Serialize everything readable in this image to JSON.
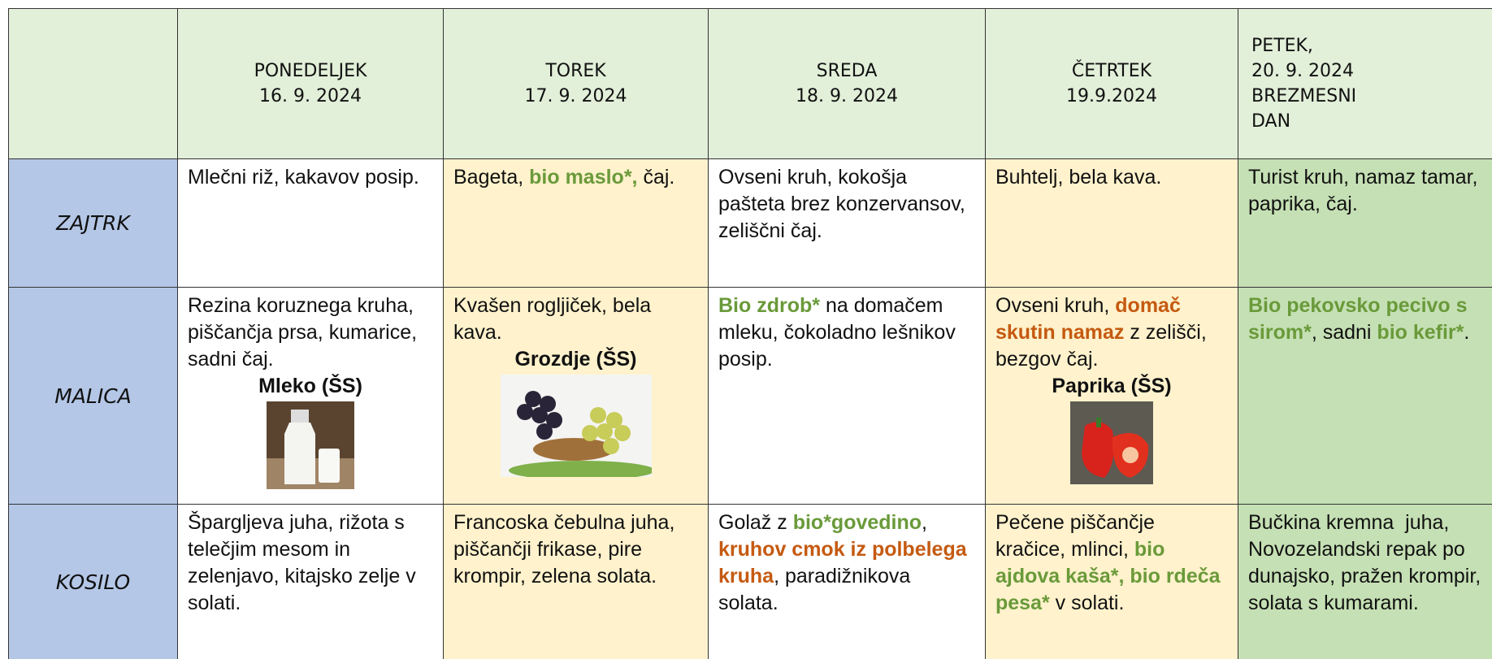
{
  "header": {
    "days": [
      {
        "lines": [
          "PONEDELJEK",
          "16. 9. 2024"
        ]
      },
      {
        "lines": [
          "TOREK",
          "17. 9. 2024"
        ]
      },
      {
        "lines": [
          "SREDA",
          "18. 9. 2024"
        ]
      },
      {
        "lines": [
          "ČETRTEK",
          "19.9.2024"
        ]
      },
      {
        "lines": [
          "PETEK,",
          "20. 9. 2024",
          "BREZMESNI",
          "DAN"
        ]
      }
    ]
  },
  "rows": [
    {
      "label": "ZAJTRK",
      "cells": [
        {
          "segments": [
            {
              "text": "Mlečni riž, kakavov posip.",
              "style": "plain"
            }
          ]
        },
        {
          "segments": [
            {
              "text": "Bageta, ",
              "style": "plain"
            },
            {
              "text": "bio maslo*,",
              "style": "green"
            },
            {
              "text": " čaj.",
              "style": "plain"
            }
          ]
        },
        {
          "segments": [
            {
              "text": "Ovseni kruh, kokošja pašteta brez konzervansov, zeliščni čaj.",
              "style": "plain"
            }
          ]
        },
        {
          "segments": [
            {
              "text": "Buhtelj, bela kava.",
              "style": "plain"
            }
          ]
        },
        {
          "segments": [
            {
              "text": "Turist kruh, namaz tamar, paprika, čaj.",
              "style": "plain"
            }
          ]
        }
      ]
    },
    {
      "label": "MALICA",
      "cells": [
        {
          "segments": [
            {
              "text": "Rezina koruznega kruha, piščančja prsa, kumarice, sadni čaj.",
              "style": "plain"
            }
          ],
          "snack": "Mleko (ŠS)"
        },
        {
          "segments": [
            {
              "text": "Kvašen rogljiček, bela kava.",
              "style": "plain"
            }
          ],
          "snack": "Grozdje (ŠS)"
        },
        {
          "segments": [
            {
              "text": "Bio zdrob*",
              "style": "green"
            },
            {
              "text": " na domačem mleku, čokoladno lešnikov posip.",
              "style": "plain"
            }
          ]
        },
        {
          "segments": [
            {
              "text": "Ovseni kruh, ",
              "style": "plain"
            },
            {
              "text": "domač skutin namaz",
              "style": "orange"
            },
            {
              "text": " z zelišči, bezgov čaj.",
              "style": "plain"
            }
          ],
          "snack": "Paprika (ŠS)"
        },
        {
          "segments": [
            {
              "text": "Bio pekovsko pecivo s sirom*",
              "style": "green"
            },
            {
              "text": ", sadni ",
              "style": "plain"
            },
            {
              "text": "bio kefir*",
              "style": "green"
            },
            {
              "text": ".",
              "style": "plain"
            }
          ]
        }
      ]
    },
    {
      "label": "KOSILO",
      "cells": [
        {
          "segments": [
            {
              "text": "Špargljeva juha, rižota s telečjim mesom in zelenjavo, kitajsko zelje v solati.",
              "style": "plain"
            }
          ]
        },
        {
          "segments": [
            {
              "text": "Francoska čebulna juha, piščančji frikase, pire krompir, zelena solata.",
              "style": "plain"
            }
          ]
        },
        {
          "segments": [
            {
              "text": "Golaž z ",
              "style": "plain"
            },
            {
              "text": "bio*govedino",
              "style": "green"
            },
            {
              "text": ", ",
              "style": "plain"
            },
            {
              "text": "kruhov cmok iz polbelega kruha",
              "style": "orange"
            },
            {
              "text": ", paradižnikova solata.",
              "style": "plain"
            }
          ]
        },
        {
          "segments": [
            {
              "text": "Pečene piščančje kračice, mlinci, ",
              "style": "plain"
            },
            {
              "text": "bio ajdova kaša*, bio rdeča pesa*",
              "style": "green"
            },
            {
              "text": " v solati.",
              "style": "plain"
            }
          ]
        },
        {
          "segments": [
            {
              "text": "Bučkina kremna  juha, Novozelandski repak po dunajsko, pražen krompir, solata s kumarami.",
              "style": "plain"
            }
          ]
        }
      ]
    }
  ]
}
